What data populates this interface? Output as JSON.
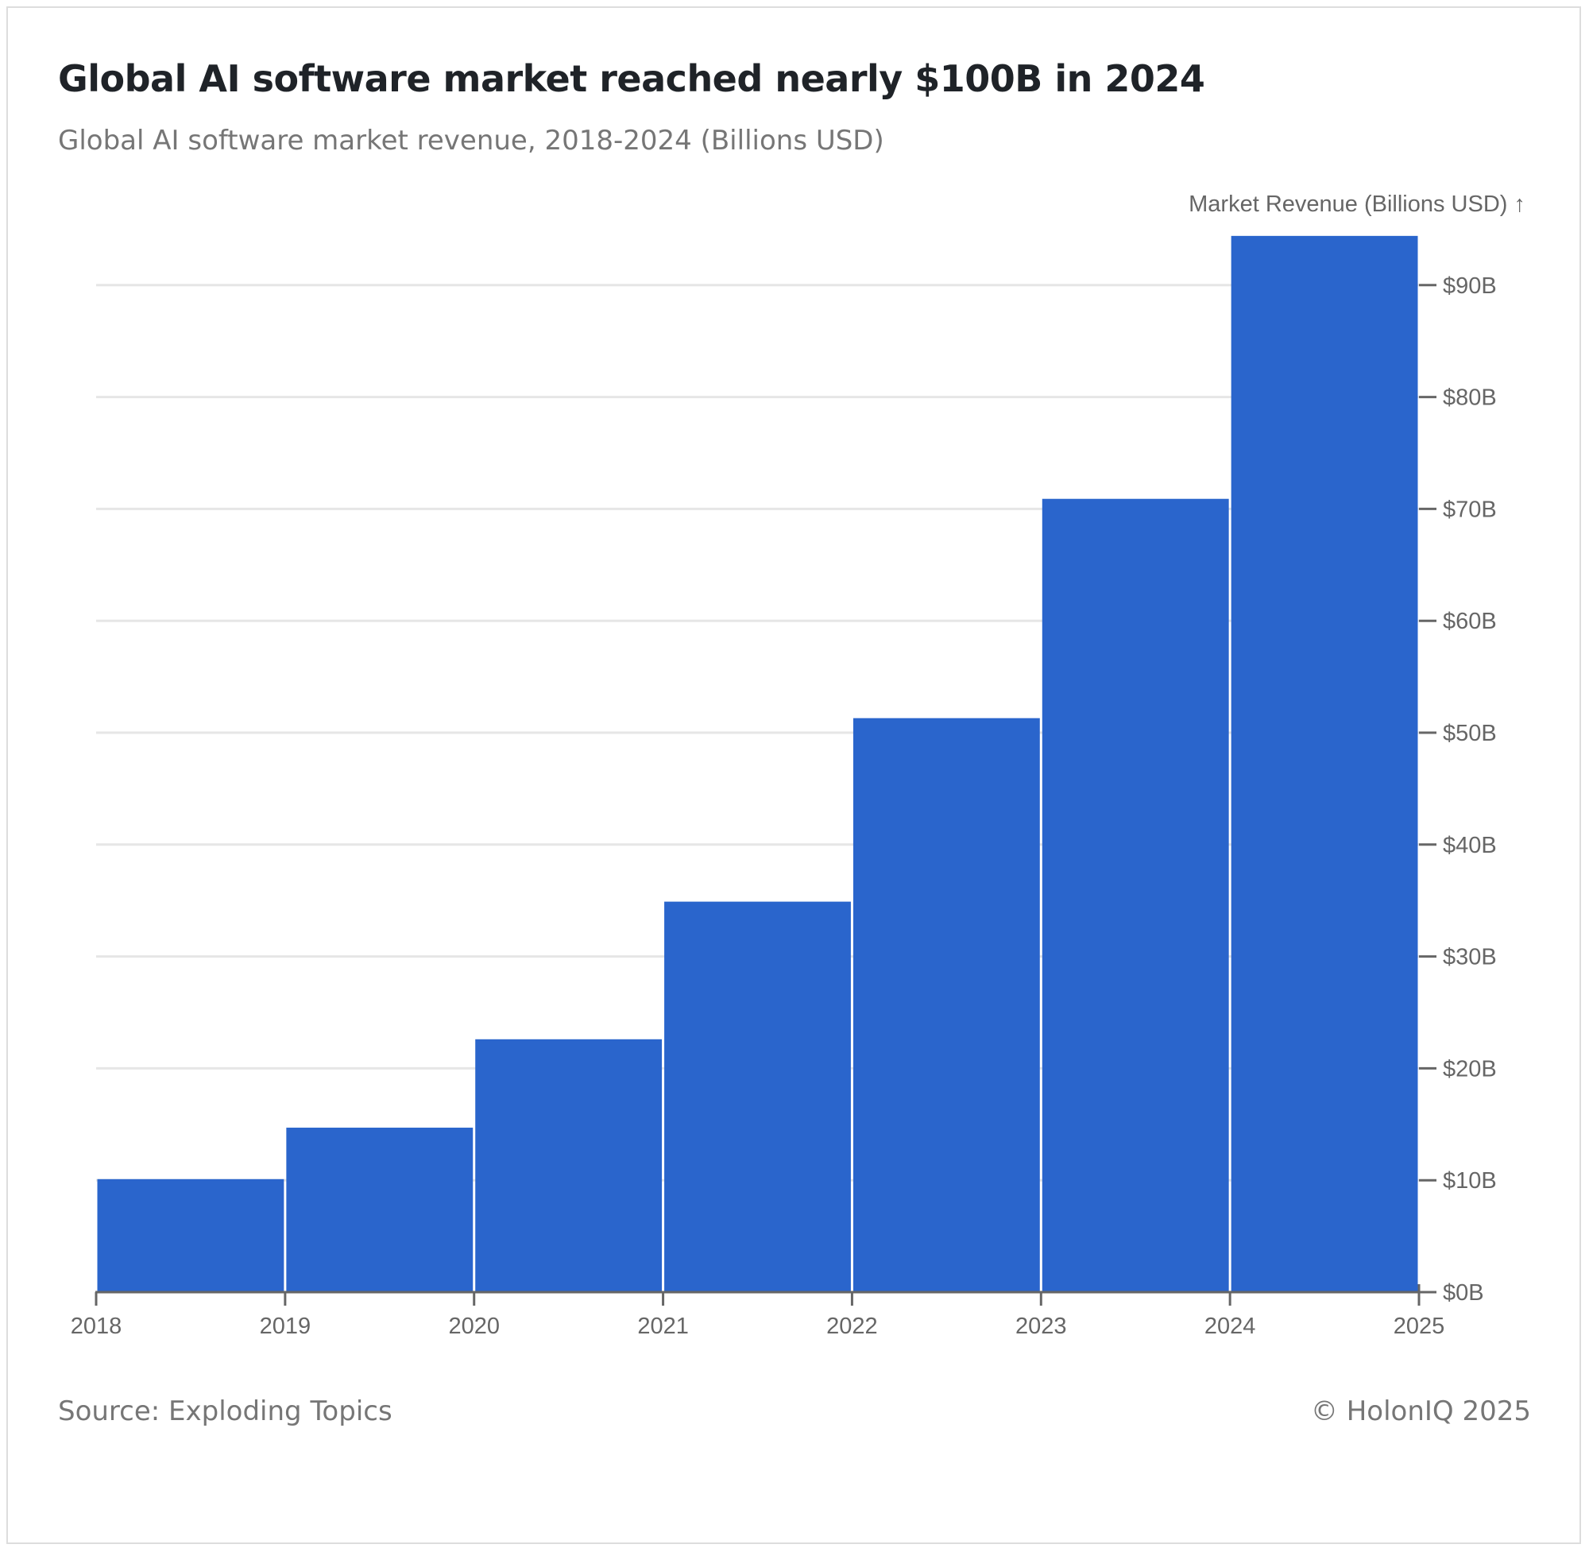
{
  "header": {
    "title": "Global AI software market reached nearly $100B in 2024",
    "subtitle": "Global AI software market revenue, 2018-2024 (Billions USD)"
  },
  "footer": {
    "source": "Source: Exploding Topics",
    "copyright": "© HolonIQ 2025"
  },
  "chart_data": {
    "type": "bar",
    "ylabel": "Market Revenue (Billions USD) ↑",
    "x_ticks": [
      "2018",
      "2019",
      "2020",
      "2021",
      "2022",
      "2023",
      "2024",
      "2025"
    ],
    "y_ticks": [
      "$0B",
      "$10B",
      "$20B",
      "$30B",
      "$40B",
      "$50B",
      "$60B",
      "$70B",
      "$80B",
      "$90B"
    ],
    "xlim": [
      2018,
      2025
    ],
    "ylim": [
      0,
      95
    ],
    "bars": [
      {
        "x0": 2018,
        "x1": 2019,
        "value": 10.1
      },
      {
        "x0": 2019,
        "x1": 2020,
        "value": 14.7
      },
      {
        "x0": 2020,
        "x1": 2021,
        "value": 22.6
      },
      {
        "x0": 2021,
        "x1": 2022,
        "value": 34.9
      },
      {
        "x0": 2022,
        "x1": 2023,
        "value": 51.3
      },
      {
        "x0": 2023,
        "x1": 2024,
        "value": 70.9
      },
      {
        "x0": 2024,
        "x1": 2025,
        "value": 94.4
      }
    ],
    "bar_color": "#2a65cc",
    "grid": true,
    "y_axis_position": "right"
  }
}
